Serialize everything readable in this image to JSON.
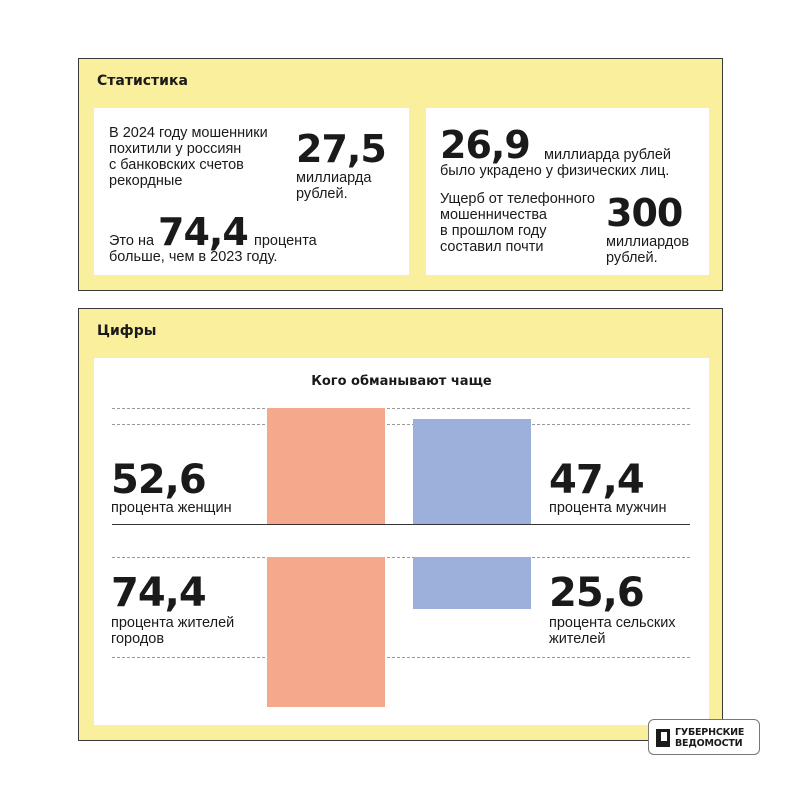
{
  "stats": {
    "title": "Статистика",
    "card1": {
      "text1": "В 2024 году мошенники\nпохитили у россиян\nс банковских счетов\nрекордные",
      "big1": "27,5",
      "unit1": "миллиарда\nрублей.",
      "prefix2": "Это на",
      "big2": "74,4",
      "suffix2": "процента",
      "line2": "больше, чем в 2023 году."
    },
    "card2": {
      "big1": "26,9",
      "suffix1": "миллиарда рублей",
      "line1": "было украдено у физических лиц.",
      "text2": "Ущерб от телефонного\nмошенничества\nв прошлом году\nсоставил почти",
      "big2": "300",
      "unit2": "миллиардов\nрублей."
    }
  },
  "figures": {
    "title": "Цифры"
  },
  "chart_data": {
    "type": "bar",
    "title": "Кого обманывают чаще",
    "groups": [
      {
        "unit": "percent",
        "left": {
          "value": 52.6,
          "value_label": "52,6",
          "label": "процента женщин",
          "color": "#f5a98c"
        },
        "right": {
          "value": 47.4,
          "value_label": "47,4",
          "label": "процента мужчин",
          "color": "#9db0db"
        }
      },
      {
        "unit": "percent",
        "left": {
          "value": 74.4,
          "value_label": "74,4",
          "label": "процента жителей\nгородов",
          "color": "#f5a98c"
        },
        "right": {
          "value": 25.6,
          "value_label": "25,6",
          "label": "процента сельских\nжителей",
          "color": "#9db0db"
        }
      }
    ]
  },
  "logo": {
    "text": "ГУБЕРНСКИЕ\nВЕДОМОСТИ"
  },
  "colors": {
    "panel": "#faef9c",
    "women_city": "#f5a98c",
    "men_rural": "#9db0db"
  }
}
